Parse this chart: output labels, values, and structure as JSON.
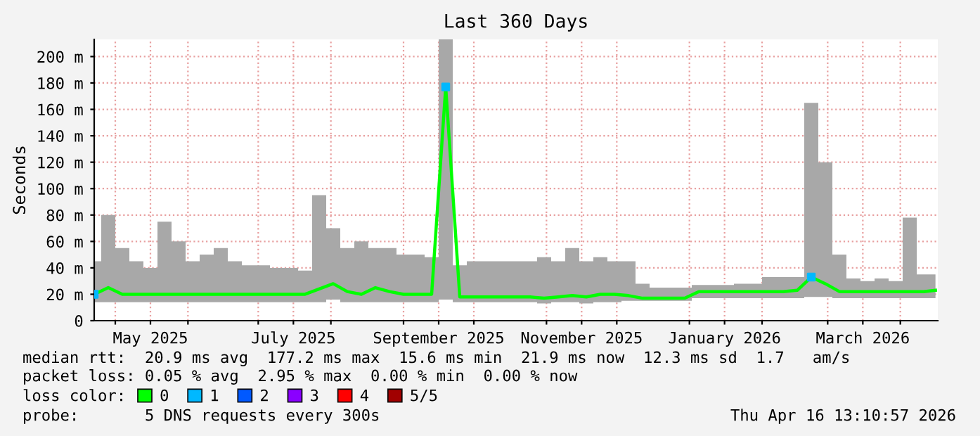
{
  "chart_data": {
    "type": "line",
    "title": "Last 360 Days",
    "ylabel": "Seconds",
    "x": [
      "2025-04-22",
      "2025-04-28",
      "2025-05-04",
      "2025-05-10",
      "2025-05-16",
      "2025-05-22",
      "2025-05-28",
      "2025-06-03",
      "2025-06-09",
      "2025-06-15",
      "2025-06-21",
      "2025-06-27",
      "2025-07-03",
      "2025-07-09",
      "2025-07-15",
      "2025-07-21",
      "2025-07-27",
      "2025-08-02",
      "2025-08-08",
      "2025-08-14",
      "2025-08-20",
      "2025-08-26",
      "2025-09-01",
      "2025-09-07",
      "2025-09-13",
      "2025-09-19",
      "2025-09-25",
      "2025-10-01",
      "2025-10-07",
      "2025-10-13",
      "2025-10-19",
      "2025-10-25",
      "2025-10-31",
      "2025-11-06",
      "2025-11-12",
      "2025-11-18",
      "2025-11-24",
      "2025-11-30",
      "2025-12-06",
      "2025-12-12",
      "2025-12-18",
      "2025-12-24",
      "2025-12-30",
      "2026-01-05",
      "2026-01-11",
      "2026-01-17",
      "2026-01-23",
      "2026-01-29",
      "2026-02-04",
      "2026-02-10",
      "2026-02-16",
      "2026-02-22",
      "2026-02-28",
      "2026-03-06",
      "2026-03-12",
      "2026-03-18",
      "2026-03-24",
      "2026-03-30",
      "2026-04-05",
      "2026-04-11",
      "2026-04-16"
    ],
    "series": [
      {
        "name": "0",
        "color": "#00ff00",
        "values": [
          20,
          25,
          20,
          20,
          20,
          20,
          20,
          20,
          20,
          20,
          20,
          20,
          20,
          20,
          20,
          20,
          24,
          28,
          22,
          20,
          25,
          22,
          20,
          20,
          20,
          177,
          18,
          18,
          18,
          18,
          18,
          18,
          17,
          18,
          19,
          18,
          20,
          20,
          19,
          17,
          17,
          17,
          17,
          22,
          22,
          22,
          22,
          22,
          22,
          22,
          23,
          33,
          28,
          22,
          22,
          22,
          22,
          22,
          22,
          22,
          23
        ],
        "lower": [
          14,
          14,
          14,
          14,
          14,
          14,
          14,
          14,
          14,
          14,
          14,
          14,
          14,
          14,
          14,
          14,
          14,
          16,
          14,
          14,
          14,
          14,
          14,
          14,
          14,
          16,
          14,
          14,
          14,
          14,
          14,
          14,
          13,
          14,
          14,
          13,
          14,
          14,
          15,
          15,
          15,
          15,
          15,
          17,
          17,
          17,
          17,
          17,
          17,
          17,
          17,
          18,
          18,
          17,
          17,
          17,
          17,
          17,
          17,
          17,
          17
        ],
        "upper": [
          45,
          80,
          55,
          45,
          40,
          75,
          60,
          45,
          50,
          55,
          45,
          42,
          42,
          40,
          40,
          38,
          95,
          70,
          55,
          60,
          55,
          55,
          50,
          50,
          48,
          213,
          42,
          45,
          45,
          45,
          45,
          45,
          48,
          45,
          55,
          45,
          48,
          45,
          45,
          28,
          25,
          25,
          25,
          27,
          27,
          27,
          28,
          28,
          33,
          33,
          33,
          165,
          120,
          50,
          32,
          30,
          32,
          30,
          78,
          35,
          35
        ]
      },
      {
        "name": "1",
        "type": "scatter",
        "marker": "square",
        "color": "#00b8ff",
        "values": [
          20,
          null,
          null,
          null,
          null,
          null,
          null,
          null,
          null,
          null,
          null,
          null,
          null,
          null,
          null,
          null,
          null,
          null,
          null,
          null,
          null,
          null,
          null,
          null,
          null,
          177,
          null,
          null,
          null,
          null,
          null,
          null,
          null,
          null,
          null,
          null,
          null,
          null,
          null,
          null,
          null,
          null,
          null,
          null,
          null,
          null,
          null,
          null,
          null,
          null,
          null,
          33,
          null,
          null,
          null,
          null,
          null,
          null,
          null,
          null,
          null
        ]
      },
      {
        "name": "2",
        "color": "#0059ff",
        "values": [
          null,
          null,
          null,
          null,
          null,
          null,
          null,
          null,
          null,
          null,
          null,
          null,
          null,
          null,
          null,
          null,
          null,
          null,
          null,
          null,
          null,
          null,
          null,
          null,
          null,
          null,
          null,
          null,
          null,
          null,
          null,
          null,
          null,
          null,
          null,
          null,
          null,
          null,
          null,
          null,
          null,
          null,
          null,
          null,
          null,
          null,
          null,
          null,
          null,
          null,
          null,
          null,
          null,
          null,
          null,
          null,
          null,
          null,
          null,
          null,
          null
        ]
      },
      {
        "name": "3",
        "color": "#8a00ff",
        "values": [
          null,
          null,
          null,
          null,
          null,
          null,
          null,
          null,
          null,
          null,
          null,
          null,
          null,
          null,
          null,
          null,
          null,
          null,
          null,
          null,
          null,
          null,
          null,
          null,
          null,
          null,
          null,
          null,
          null,
          null,
          null,
          null,
          null,
          null,
          null,
          null,
          null,
          null,
          null,
          null,
          null,
          null,
          null,
          null,
          null,
          null,
          null,
          null,
          null,
          null,
          null,
          null,
          null,
          null,
          null,
          null,
          null,
          null,
          null,
          null,
          null
        ]
      },
      {
        "name": "4",
        "color": "#ff0000",
        "values": [
          null,
          null,
          null,
          null,
          null,
          null,
          null,
          null,
          null,
          null,
          null,
          null,
          null,
          null,
          null,
          null,
          null,
          null,
          null,
          null,
          null,
          null,
          null,
          null,
          null,
          null,
          null,
          null,
          null,
          null,
          null,
          null,
          null,
          null,
          null,
          null,
          null,
          null,
          null,
          null,
          null,
          null,
          null,
          null,
          null,
          null,
          null,
          null,
          null,
          null,
          null,
          null,
          null,
          null,
          null,
          null,
          null,
          null,
          null,
          null,
          null
        ]
      },
      {
        "name": "5/5",
        "color": "#a10000",
        "values": [
          null,
          null,
          null,
          null,
          null,
          null,
          null,
          null,
          null,
          null,
          null,
          null,
          null,
          null,
          null,
          null,
          null,
          null,
          null,
          null,
          null,
          null,
          null,
          null,
          null,
          null,
          null,
          null,
          null,
          null,
          null,
          null,
          null,
          null,
          null,
          null,
          null,
          null,
          null,
          null,
          null,
          null,
          null,
          null,
          null,
          null,
          null,
          null,
          null,
          null,
          null,
          null,
          null,
          null,
          null,
          null,
          null,
          null,
          null,
          null,
          null
        ]
      }
    ],
    "xlim": [
      "2025-04-22",
      "2026-04-17"
    ],
    "xticks": [
      {
        "value": "2025-05-01",
        "label": null
      },
      {
        "value": "2025-05-16",
        "label": "May 2025"
      },
      {
        "value": "2025-06-01",
        "label": null
      },
      {
        "value": "2025-07-01",
        "label": null
      },
      {
        "value": "2025-07-16",
        "label": "July 2025"
      },
      {
        "value": "2025-08-01",
        "label": null
      },
      {
        "value": "2025-09-01",
        "label": null
      },
      {
        "value": "2025-09-16",
        "label": "September 2025"
      },
      {
        "value": "2025-10-01",
        "label": null
      },
      {
        "value": "2025-11-01",
        "label": null
      },
      {
        "value": "2025-11-16",
        "label": "November 2025"
      },
      {
        "value": "2025-12-01",
        "label": null
      },
      {
        "value": "2026-01-01",
        "label": null
      },
      {
        "value": "2026-01-16",
        "label": "January 2026"
      },
      {
        "value": "2026-02-01",
        "label": null
      },
      {
        "value": "2026-03-01",
        "label": null
      },
      {
        "value": "2026-03-16",
        "label": "March 2026"
      },
      {
        "value": "2026-04-01",
        "label": null
      }
    ],
    "ylim": [
      0,
      213
    ],
    "yticks": [
      0,
      {
        "value": 20,
        "label": "20 m"
      },
      {
        "value": 40,
        "label": "40 m"
      },
      {
        "value": 60,
        "label": "60 m"
      },
      {
        "value": 80,
        "label": "80 m"
      },
      {
        "value": 100,
        "label": "100 m"
      },
      {
        "value": 120,
        "label": "120 m"
      },
      {
        "value": 140,
        "label": "140 m"
      },
      {
        "value": 160,
        "label": "160 m"
      },
      {
        "value": 180,
        "label": "180 m"
      },
      {
        "value": 200,
        "label": "200 m"
      }
    ],
    "grid": true,
    "marker": "none",
    "line_style": "solid",
    "legend": "bottom",
    "legend_title": "loss color:",
    "annotations": [
      "median rtt:  20.9 ms avg  177.2 ms max  15.6 ms min  21.9 ms now  12.3 ms sd  1.7   am/s",
      "packet loss: 0.05 % avg  2.95 % max  0.00 % min  0.00 % now",
      "probe:       5 DNS requests every 300s",
      "Thu Apr 16 13:10:57 2026"
    ]
  }
}
